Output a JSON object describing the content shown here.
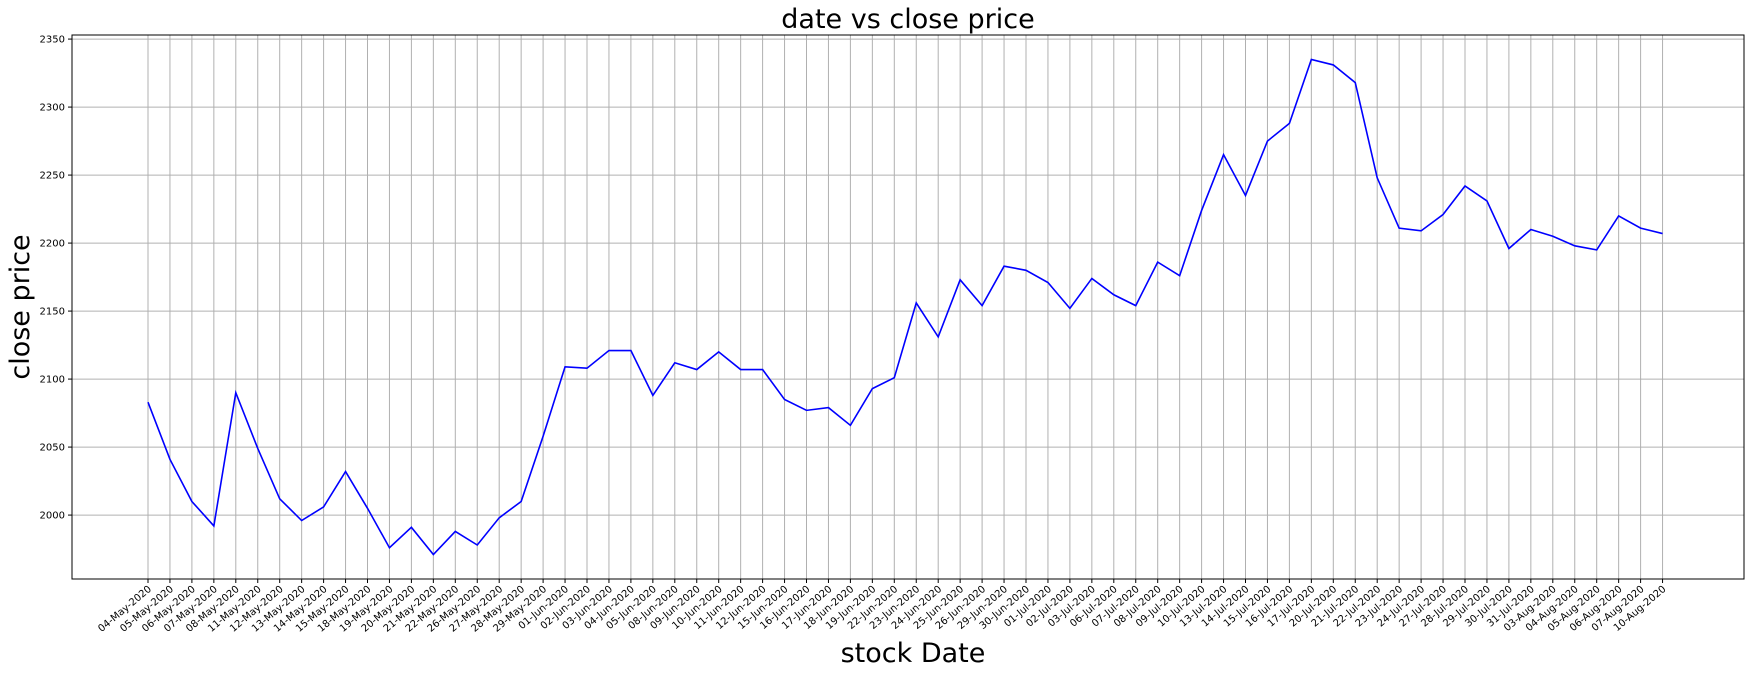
{
  "chart_data": {
    "type": "line",
    "title": "date vs close price",
    "xlabel": "stock Date",
    "ylabel": "close price",
    "ylim": [
      1953,
      2353
    ],
    "yticks": [
      2000,
      2050,
      2100,
      2150,
      2200,
      2250,
      2300,
      2350
    ],
    "grid": true,
    "line_color": "#0000ff",
    "grid_color": "#b0b0b0",
    "categories": [
      "04-May-2020",
      "05-May-2020",
      "06-May-2020",
      "07-May-2020",
      "08-May-2020",
      "11-May-2020",
      "12-May-2020",
      "13-May-2020",
      "14-May-2020",
      "15-May-2020",
      "18-May-2020",
      "19-May-2020",
      "20-May-2020",
      "21-May-2020",
      "22-May-2020",
      "26-May-2020",
      "27-May-2020",
      "28-May-2020",
      "29-May-2020",
      "01-Jun-2020",
      "02-Jun-2020",
      "03-Jun-2020",
      "04-Jun-2020",
      "05-Jun-2020",
      "08-Jun-2020",
      "09-Jun-2020",
      "10-Jun-2020",
      "11-Jun-2020",
      "12-Jun-2020",
      "15-Jun-2020",
      "16-Jun-2020",
      "17-Jun-2020",
      "18-Jun-2020",
      "19-Jun-2020",
      "22-Jun-2020",
      "23-Jun-2020",
      "24-Jun-2020",
      "25-Jun-2020",
      "26-Jun-2020",
      "29-Jun-2020",
      "30-Jun-2020",
      "01-Jul-2020",
      "02-Jul-2020",
      "03-Jul-2020",
      "06-Jul-2020",
      "07-Jul-2020",
      "08-Jul-2020",
      "09-Jul-2020",
      "10-Jul-2020",
      "13-Jul-2020",
      "14-Jul-2020",
      "15-Jul-2020",
      "16-Jul-2020",
      "17-Jul-2020",
      "20-Jul-2020",
      "21-Jul-2020",
      "22-Jul-2020",
      "23-Jul-2020",
      "24-Jul-2020",
      "27-Jul-2020",
      "28-Jul-2020",
      "29-Jul-2020",
      "30-Jul-2020",
      "31-Jul-2020",
      "03-Aug-2020",
      "04-Aug-2020",
      "05-Aug-2020",
      "06-Aug-2020",
      "07-Aug-2020",
      "10-Aug-2020"
    ],
    "series": [
      {
        "values": [
          2083,
          2041,
          2010,
          1992,
          2090,
          2049,
          2012,
          1996,
          2006,
          2032,
          2005,
          1976,
          1991,
          1971,
          1988,
          1978,
          1998,
          2010,
          2058,
          2109,
          2108,
          2121,
          2121,
          2088,
          2112,
          2107,
          2120,
          2107,
          2107,
          2085,
          2077,
          2079,
          2066,
          2093,
          2101,
          2156,
          2131,
          2173,
          2154,
          2183,
          2180,
          2171,
          2152,
          2174,
          2162,
          2154,
          2186,
          2176,
          2224,
          2265,
          2235,
          2275,
          2288,
          2335,
          2331,
          2318,
          2248,
          2211,
          2209,
          2221,
          2242,
          2231,
          2196,
          2210,
          2205,
          2198,
          2195,
          2220,
          2211,
          2207
        ]
      }
    ]
  }
}
